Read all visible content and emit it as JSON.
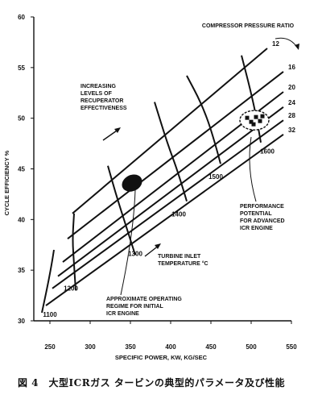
{
  "caption": "図 4　大型ICRガス タービンの典型的パラメータ及び性能",
  "chart_data": {
    "type": "line",
    "title": "",
    "xlabel": "SPECIFIC POWER, KW, KG/SEC",
    "ylabel": "CYCLE EFFICIENCY %",
    "xlim": [
      230,
      550
    ],
    "ylim": [
      30,
      60
    ],
    "xticks": [
      "250",
      "300",
      "350",
      "400",
      "450",
      "500",
      "550"
    ],
    "yticks": [
      "30",
      "35",
      "40",
      "45",
      "50",
      "55",
      "60"
    ],
    "pressure_ratio_label": "COMPRESSOR PRESSURE RATIO",
    "pressure_ratio_lines": [
      {
        "name": "12",
        "points": [
          [
            278,
            40.6
          ],
          [
            520,
            56.9
          ]
        ]
      },
      {
        "name": "16",
        "points": [
          [
            272,
            38.1
          ],
          [
            540,
            54.6
          ]
        ]
      },
      {
        "name": "20",
        "points": [
          [
            266,
            35.8
          ],
          [
            540,
            52.6
          ]
        ]
      },
      {
        "name": "24",
        "points": [
          [
            260,
            34.4
          ],
          [
            540,
            51.1
          ]
        ]
      },
      {
        "name": "28",
        "points": [
          [
            253,
            33.2
          ],
          [
            540,
            49.8
          ]
        ]
      },
      {
        "name": "32",
        "points": [
          [
            245,
            31.5
          ],
          [
            540,
            48.4
          ]
        ]
      }
    ],
    "temperature_curves": [
      {
        "name": "1100",
        "points": [
          [
            240,
            30.8
          ],
          [
            246,
            33.0
          ],
          [
            252,
            35.5
          ],
          [
            255,
            37.0
          ]
        ]
      },
      {
        "name": "1200",
        "points": [
          [
            282,
            33.0
          ],
          [
            280,
            35.6
          ],
          [
            278,
            38.0
          ],
          [
            280,
            40.6
          ]
        ]
      },
      {
        "name": "1300",
        "points": [
          [
            356,
            36.5
          ],
          [
            344,
            39.5
          ],
          [
            332,
            42.5
          ],
          [
            322,
            45.3
          ]
        ]
      },
      {
        "name": "1400",
        "points": [
          [
            420,
            41.8
          ],
          [
            410,
            44.5
          ],
          [
            396,
            47.5
          ],
          [
            380,
            51.6
          ]
        ]
      },
      {
        "name": "1500",
        "points": [
          [
            462,
            45.5
          ],
          [
            452,
            48.5
          ],
          [
            438,
            51.5
          ],
          [
            420,
            54.2
          ]
        ]
      },
      {
        "name": "1600",
        "points": [
          [
            512,
            47.6
          ],
          [
            508,
            49.5
          ],
          [
            500,
            52.5
          ],
          [
            488,
            56.2
          ]
        ]
      }
    ],
    "temperature_labels": [
      {
        "text": "1100",
        "x": 250,
        "y": 30.4
      },
      {
        "text": "1200",
        "x": 276,
        "y": 33.0
      },
      {
        "text": "1300",
        "x": 356,
        "y": 36.4
      },
      {
        "text": "1400",
        "x": 410,
        "y": 40.3
      },
      {
        "text": "1500",
        "x": 456,
        "y": 44.0
      },
      {
        "text": "1600",
        "x": 520,
        "y": 46.5
      }
    ],
    "initial_regime_point": {
      "x": 352,
      "y": 43.6
    },
    "advanced_regime_point": {
      "x": 504,
      "y": 49.8
    },
    "annotations": [
      {
        "id": "recuperator",
        "lines": [
          "INCREASING",
          "LEVELS OF",
          "RECUPERATOR",
          "EFFECTIVENESS"
        ]
      },
      {
        "id": "turbine",
        "lines": [
          "TURBINE INLET",
          "TEMPERATURE °C"
        ]
      },
      {
        "id": "approx",
        "lines": [
          "APPROXIMATE OPERATING",
          "REGIME FOR INITIAL",
          "ICR ENGINE"
        ]
      },
      {
        "id": "performance",
        "lines": [
          "PERFORMANCE",
          "POTENTIAL",
          "FOR ADVANCED",
          "ICR ENGINE"
        ]
      }
    ]
  }
}
